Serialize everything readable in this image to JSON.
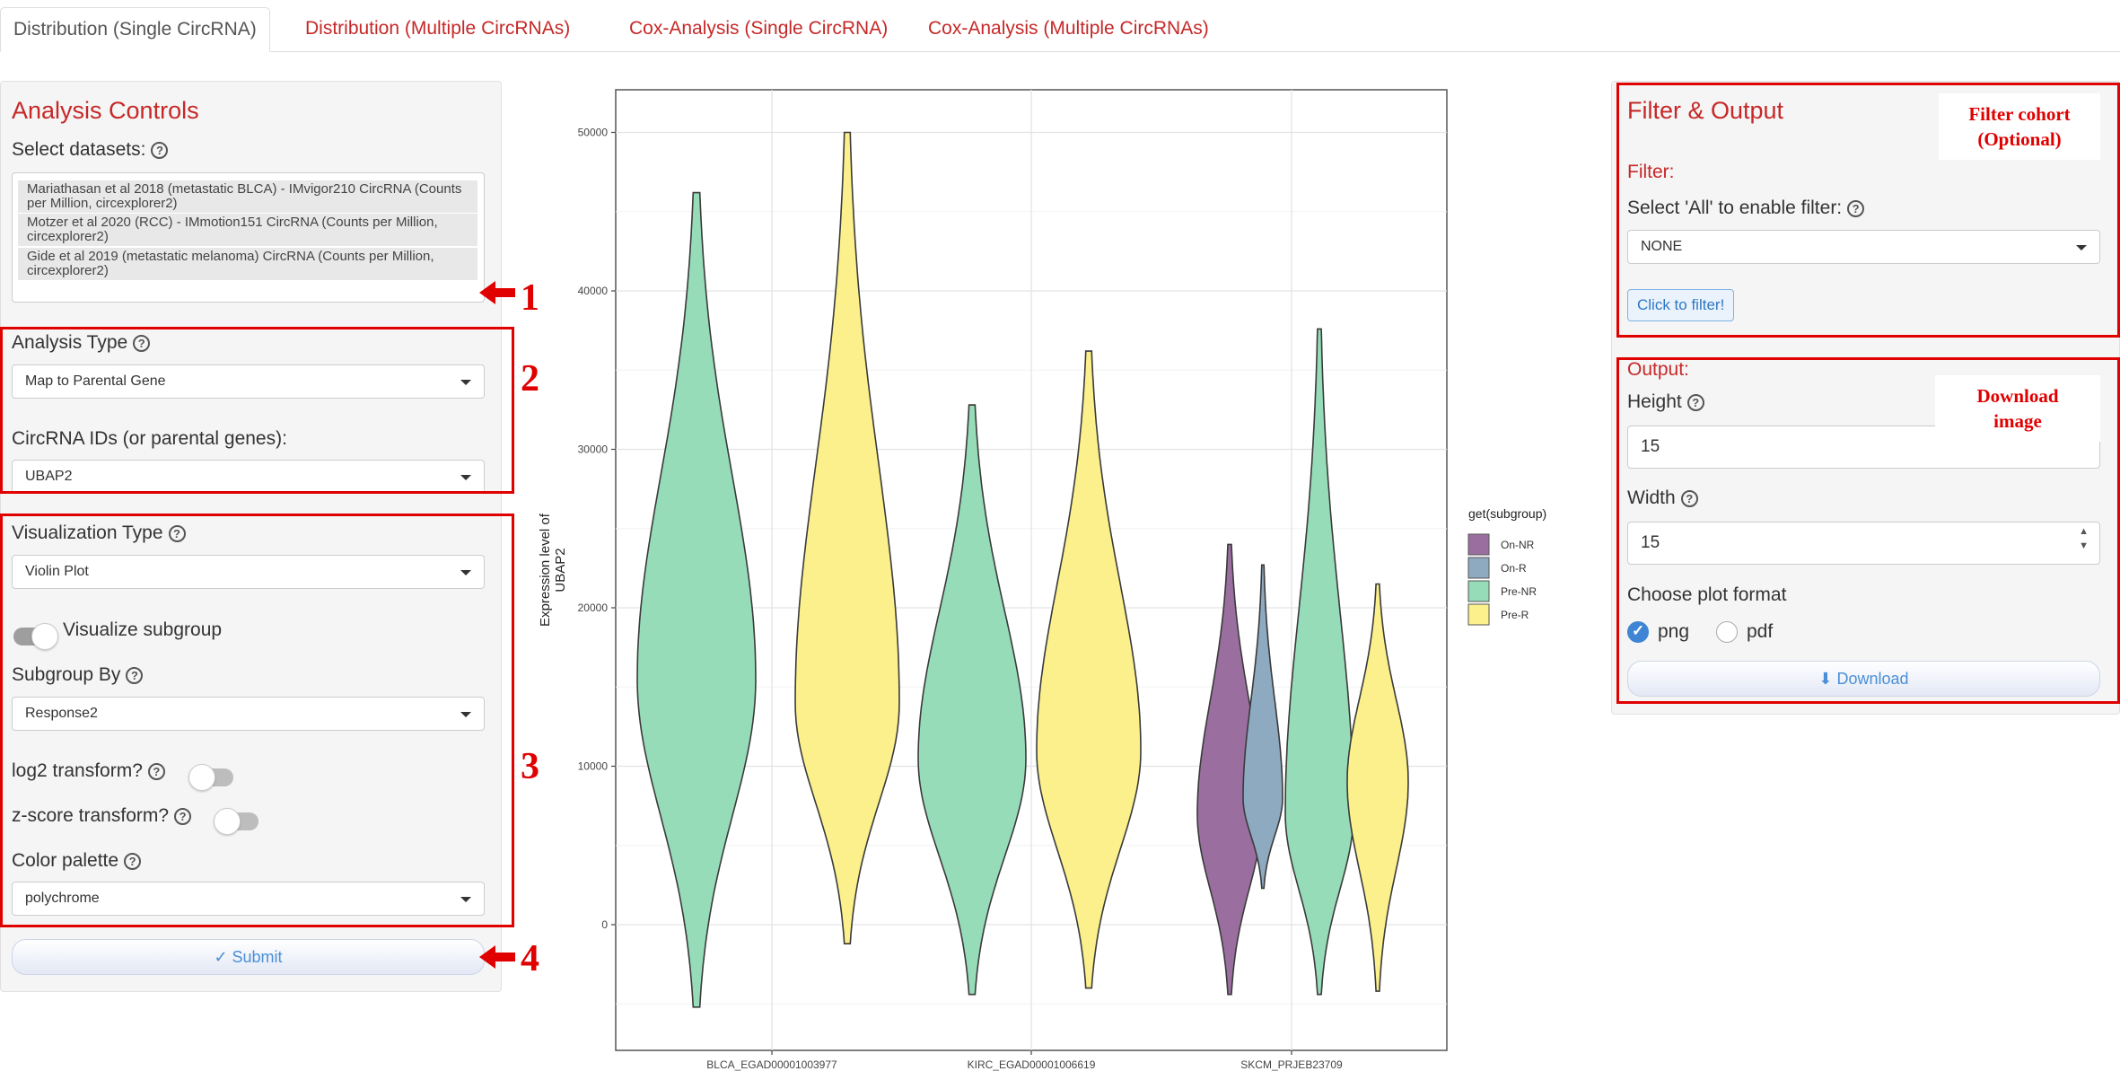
{
  "tabs": [
    {
      "label": "Distribution (Single CircRNA)",
      "active": true
    },
    {
      "label": "Distribution (Multiple CircRNAs)",
      "active": false
    },
    {
      "label": "Cox-Analysis (Single CircRNA)",
      "active": false
    },
    {
      "label": "Cox-Analysis (Multiple CircRNAs)",
      "active": false
    }
  ],
  "controls": {
    "title": "Analysis Controls",
    "datasets_label": "Select datasets:",
    "datasets": [
      "Mariathasan et al 2018 (metastatic BLCA) - IMvigor210 CircRNA (Counts per Million, circexplorer2)",
      "Motzer et al 2020 (RCC) - IMmotion151 CircRNA (Counts per Million, circexplorer2)",
      "Gide et al 2019 (metastatic melanoma) CircRNA (Counts per Million, circexplorer2)"
    ],
    "analysis_type_label": "Analysis Type",
    "analysis_type_value": "Map to Parental Gene",
    "circ_ids_label": "CircRNA IDs (or parental genes):",
    "circ_ids_value": "UBAP2",
    "viz_type_label": "Visualization Type",
    "viz_type_value": "Violin Plot",
    "visualize_subgroup_label": "Visualize subgroup",
    "visualize_subgroup_on": true,
    "subgroup_by_label": "Subgroup By",
    "subgroup_by_value": "Response2",
    "log2_label": "log2 transform?",
    "log2_on": false,
    "zscore_label": "z-score transform?",
    "zscore_on": false,
    "palette_label": "Color palette",
    "palette_value": "polychrome",
    "submit_label": "✓ Submit"
  },
  "filter_panel": {
    "title": "Filter & Output",
    "filter_label": "Filter:",
    "select_all_label": "Select 'All' to enable filter:",
    "filter_value": "NONE",
    "filter_button": "Click to filter!",
    "output_label": "Output:",
    "height_label": "Height",
    "height_value": "15",
    "width_label": "Width",
    "width_value": "15",
    "format_label": "Choose plot format",
    "format_options": [
      "png",
      "pdf"
    ],
    "format_selected": "png",
    "download_label": "⬇ Download"
  },
  "annotations": {
    "n1": "1",
    "n2": "2",
    "n3": "3",
    "n4": "4",
    "filter_note_l1": "Filter cohort",
    "filter_note_l2": "(Optional)",
    "download_note_l1": "Download",
    "download_note_l2": "image"
  },
  "colors": {
    "accent_red": "#c62828",
    "annotation_red": "#e00000",
    "link_blue": "#4a8fd6"
  },
  "chart_data": {
    "type": "violin",
    "title": "",
    "xlabel": "",
    "ylabel": "Expression level of UBAP2",
    "ylim": [
      -8000,
      54000
    ],
    "yticks": [
      0,
      10000,
      20000,
      30000,
      40000,
      50000
    ],
    "categories": [
      "BLCA_EGAD00001003977",
      "KIRC_EGAD00001006619",
      "SKCM_PRJEB23709"
    ],
    "legend_title": "get(subgroup)",
    "legend_position": "right",
    "grid": true,
    "series": [
      {
        "name": "On-NR",
        "color": "#9a6fa0"
      },
      {
        "name": "On-R",
        "color": "#8eaac0"
      },
      {
        "name": "Pre-NR",
        "color": "#96dcb8"
      },
      {
        "name": "Pre-R",
        "color": "#fbf08c"
      }
    ],
    "violins": [
      {
        "category": "BLCA_EGAD00001003977",
        "group": "Pre-NR",
        "min": -5200,
        "max": 46200,
        "peak": 15500
      },
      {
        "category": "BLCA_EGAD00001003977",
        "group": "Pre-R",
        "min": -1200,
        "max": 50000,
        "peak": 14000
      },
      {
        "category": "KIRC_EGAD00001006619",
        "group": "Pre-NR",
        "min": -4400,
        "max": 32800,
        "peak": 10500
      },
      {
        "category": "KIRC_EGAD00001006619",
        "group": "Pre-R",
        "min": -4000,
        "max": 36200,
        "peak": 11000
      },
      {
        "category": "SKCM_PRJEB23709",
        "group": "On-NR",
        "min": -4400,
        "max": 24000,
        "peak": 7000
      },
      {
        "category": "SKCM_PRJEB23709",
        "group": "On-R",
        "min": 2300,
        "max": 22700,
        "peak": 8000
      },
      {
        "category": "SKCM_PRJEB23709",
        "group": "Pre-NR",
        "min": -4400,
        "max": 37600,
        "peak": 7000
      },
      {
        "category": "SKCM_PRJEB23709",
        "group": "Pre-R",
        "min": -4200,
        "max": 21500,
        "peak": 9000
      }
    ]
  }
}
